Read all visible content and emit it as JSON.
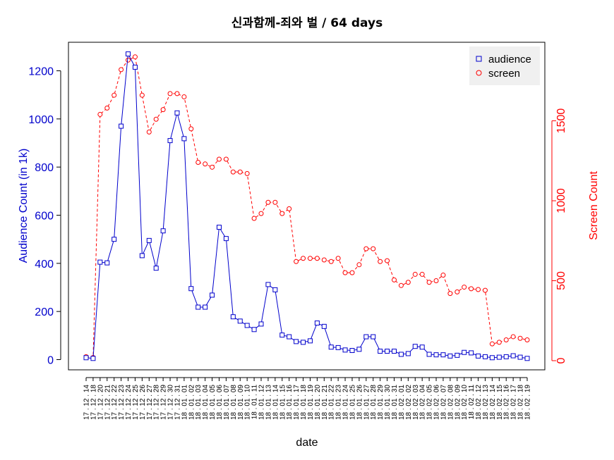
{
  "chart_data": {
    "type": "line",
    "title": "신과함께-죄와 벌 / 64 days",
    "xlabel": "date",
    "ylabel_left": "Audience Count (in 1k)",
    "ylabel_right": "Screen Count",
    "ylim_left": [
      0,
      1300
    ],
    "ylim_right": [
      0,
      1900
    ],
    "yticks_left": [
      "0",
      "200",
      "400",
      "600",
      "800",
      "1000",
      "1200"
    ],
    "yticks_right": [
      "0",
      "500",
      "1000",
      "1500"
    ],
    "grid": false,
    "legend_position": "top-right",
    "colors": {
      "audience": "#0000cc",
      "screen": "#ff0000"
    },
    "x": [
      "17 . 12 . 14",
      "17 . 12 . 18",
      "17 . 12 . 20",
      "17 . 12 . 21",
      "17 . 12 . 22",
      "17 . 12 . 23",
      "17 . 12 . 24",
      "17 . 12 . 25",
      "17 . 12 . 26",
      "17 . 12 . 27",
      "17 . 12 . 28",
      "17 . 12 . 29",
      "17 . 12 . 30",
      "17 . 12 . 31",
      "18 . 01 . 01",
      "18 . 01 . 02",
      "18 . 01 . 03",
      "18 . 01 . 04",
      "18 . 01 . 05",
      "18 . 01 . 06",
      "18 . 01 . 07",
      "18 . 01 . 08",
      "18 . 01 . 09",
      "18 . 01 . 10",
      "18 . 01 . 11",
      "18 . 01 . 12",
      "18 . 01 . 13",
      "18 . 01 . 14",
      "18 . 01 . 15",
      "18 . 01 . 16",
      "18 . 01 . 17",
      "18 . 01 . 18",
      "18 . 01 . 19",
      "18 . 01 . 20",
      "18 . 01 . 21",
      "18 . 01 . 22",
      "18 . 01 . 23",
      "18 . 01 . 24",
      "18 . 01 . 25",
      "18 . 01 . 26",
      "18 . 01 . 27",
      "18 . 01 . 28",
      "18 . 01 . 29",
      "18 . 01 . 30",
      "18 . 01 . 31",
      "18 . 02 . 01",
      "18 . 02 . 02",
      "18 . 02 . 03",
      "18 . 02 . 04",
      "18 . 02 . 05",
      "18 . 02 . 06",
      "18 . 02 . 07",
      "18 . 02 . 08",
      "18 . 02 . 09",
      "18 . 02 . 10",
      "18 . 02 . 11",
      "18 . 02 . 12",
      "18 . 02 . 13",
      "18 . 02 . 14",
      "18 . 02 . 15",
      "18 . 02 . 16",
      "18 . 02 . 17",
      "18 . 02 . 18",
      "18 . 02 . 19"
    ],
    "series": [
      {
        "name": "audience",
        "axis": "left",
        "values": [
          8,
          5,
          405,
          402,
          500,
          970,
          1270,
          1215,
          432,
          495,
          380,
          535,
          910,
          1025,
          918,
          295,
          218,
          218,
          268,
          550,
          503,
          178,
          160,
          142,
          125,
          148,
          312,
          290,
          102,
          95,
          75,
          72,
          78,
          152,
          138,
          52,
          50,
          40,
          38,
          43,
          95,
          95,
          35,
          35,
          35,
          22,
          25,
          55,
          52,
          22,
          20,
          20,
          15,
          18,
          30,
          28,
          15,
          12,
          8,
          10,
          12,
          16,
          10,
          5
        ]
      },
      {
        "name": "screen",
        "axis": "right",
        "values": [
          25,
          20,
          1540,
          1580,
          1660,
          1820,
          1880,
          1900,
          1660,
          1430,
          1510,
          1570,
          1670,
          1670,
          1650,
          1450,
          1240,
          1230,
          1210,
          1260,
          1260,
          1180,
          1180,
          1170,
          890,
          920,
          990,
          990,
          920,
          950,
          620,
          640,
          640,
          640,
          630,
          620,
          640,
          550,
          550,
          600,
          700,
          700,
          620,
          625,
          505,
          470,
          490,
          540,
          540,
          490,
          500,
          535,
          420,
          430,
          460,
          450,
          445,
          440,
          105,
          115,
          130,
          150,
          140,
          130
        ]
      }
    ]
  }
}
